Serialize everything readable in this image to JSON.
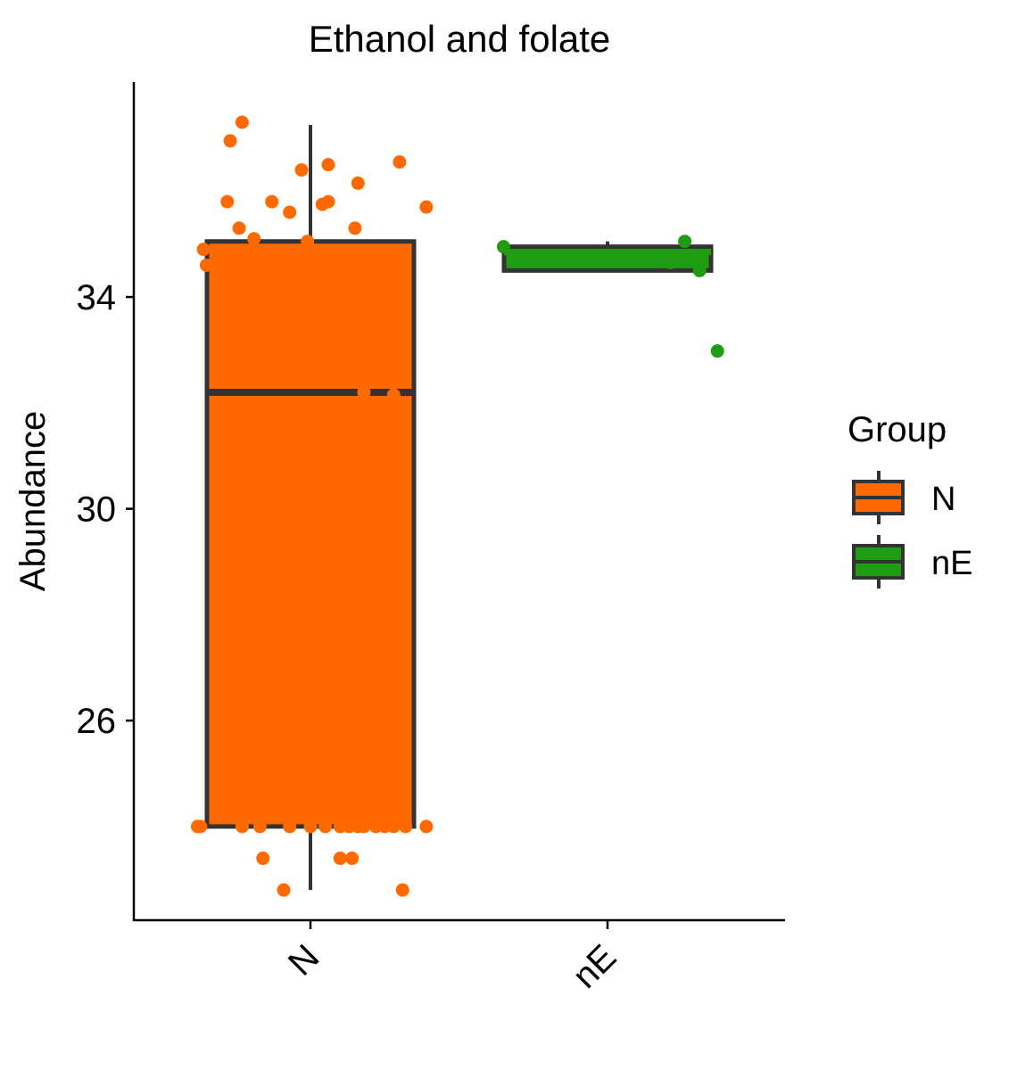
{
  "chart_data": {
    "type": "box",
    "title": "Ethanol and folate",
    "xlabel": "",
    "ylabel": "Abundance",
    "categories": [
      "N",
      "nE"
    ],
    "ylim": [
      22.23,
      38.06
    ],
    "yticks": [
      26,
      30,
      34
    ],
    "ytick_labels": [
      "26",
      "30",
      "34"
    ],
    "grid": false,
    "legend": {
      "title": "Group",
      "position": "right",
      "entries": [
        "N",
        "nE"
      ]
    },
    "series": [
      {
        "name": "N",
        "color": "#FF6A00",
        "box": {
          "whisker_low": 22.8,
          "q1": 24.0,
          "median": 32.2,
          "q3": 35.05,
          "whisker_high": 37.25
        },
        "points": [
          [
            -0.38,
            24.0
          ],
          [
            -0.37,
            24.0
          ],
          [
            -0.23,
            24.0
          ],
          [
            -0.17,
            24.0
          ],
          [
            -0.07,
            24.0
          ],
          [
            0.0,
            24.0
          ],
          [
            0.05,
            24.0
          ],
          [
            0.1,
            24.0
          ],
          [
            0.13,
            24.0
          ],
          [
            0.16,
            24.0
          ],
          [
            0.18,
            24.0
          ],
          [
            0.22,
            24.0
          ],
          [
            0.25,
            24.0
          ],
          [
            0.28,
            24.0
          ],
          [
            0.32,
            24.0
          ],
          [
            0.39,
            24.0
          ],
          [
            -0.16,
            23.4
          ],
          [
            0.1,
            23.4
          ],
          [
            0.14,
            23.4
          ],
          [
            -0.09,
            22.8
          ],
          [
            0.31,
            22.8
          ],
          [
            -0.36,
            34.9
          ],
          [
            -0.35,
            34.6
          ],
          [
            -0.28,
            35.8
          ],
          [
            -0.24,
            35.3
          ],
          [
            -0.19,
            35.1
          ],
          [
            -0.13,
            35.8
          ],
          [
            -0.07,
            35.6
          ],
          [
            -0.01,
            35.05
          ],
          [
            0.04,
            35.75
          ],
          [
            0.06,
            35.8
          ],
          [
            0.15,
            35.3
          ],
          [
            0.16,
            36.15
          ],
          [
            -0.03,
            36.4
          ],
          [
            0.06,
            36.5
          ],
          [
            -0.27,
            36.95
          ],
          [
            -0.23,
            37.3
          ],
          [
            0.3,
            36.55
          ],
          [
            0.39,
            35.7
          ],
          [
            0.18,
            32.2
          ],
          [
            0.28,
            32.15
          ]
        ]
      },
      {
        "name": "nE",
        "color": "#1F9C12",
        "box": {
          "whisker_low": 34.5,
          "q1": 34.5,
          "median": 34.85,
          "q3": 34.95,
          "whisker_high": 35.05
        },
        "points": [
          [
            -0.35,
            34.95
          ],
          [
            0.21,
            34.65
          ],
          [
            0.26,
            35.05
          ],
          [
            0.31,
            34.5
          ],
          [
            0.37,
            32.98
          ]
        ]
      }
    ]
  }
}
